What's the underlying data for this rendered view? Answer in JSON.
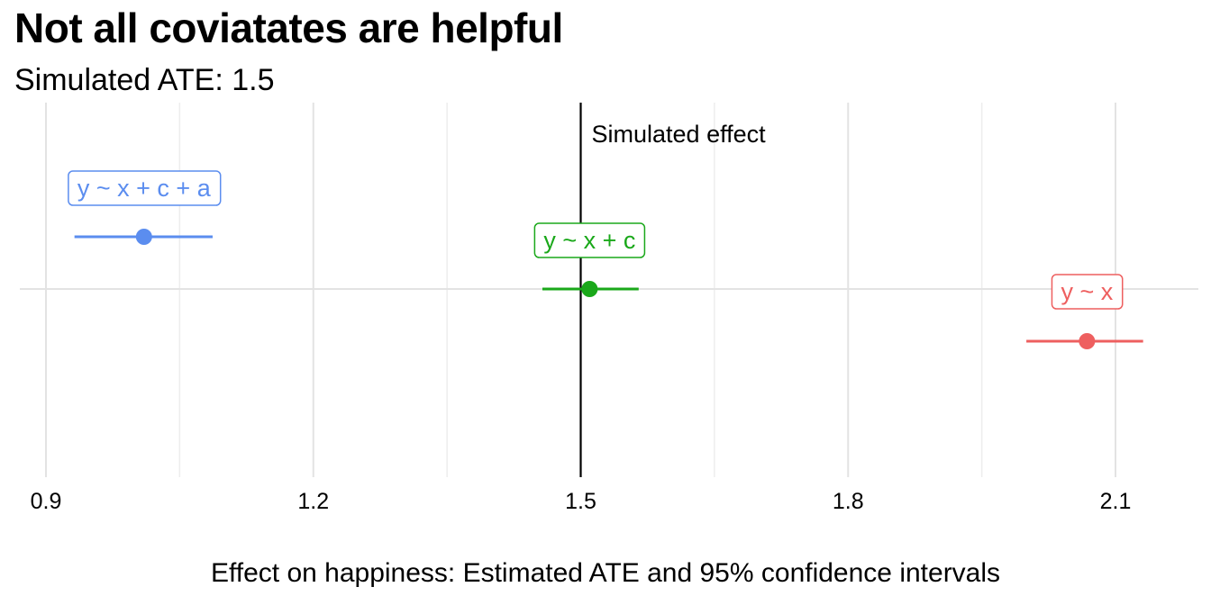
{
  "chart_data": {
    "type": "scatter",
    "title": "Not all coviatates are helpful",
    "subtitle": "Simulated ATE: 1.5",
    "xlabel": "Effect on happiness: Estimated ATE and 95% confidence intervals",
    "ylabel": "",
    "xlim": [
      0.87,
      2.2
    ],
    "x_ticks": [
      0.9,
      1.2,
      1.5,
      1.8,
      2.1
    ],
    "x_tick_labels": [
      "0.9",
      "1.2",
      "1.5",
      "1.8",
      "2.1"
    ],
    "grid": true,
    "reference_line": {
      "x": 1.5,
      "label": "Simulated effect"
    },
    "series": [
      {
        "name": "y ~ x + c + a",
        "estimate": 1.01,
        "ci_low": 0.932,
        "ci_high": 1.087,
        "color": "#5b8def"
      },
      {
        "name": "y ~ x + c",
        "estimate": 1.51,
        "ci_low": 1.457,
        "ci_high": 1.565,
        "color": "#1aa81a"
      },
      {
        "name": "y ~ x",
        "estimate": 2.068,
        "ci_low": 2.0,
        "ci_high": 2.131,
        "color": "#ee5f5f"
      }
    ]
  }
}
